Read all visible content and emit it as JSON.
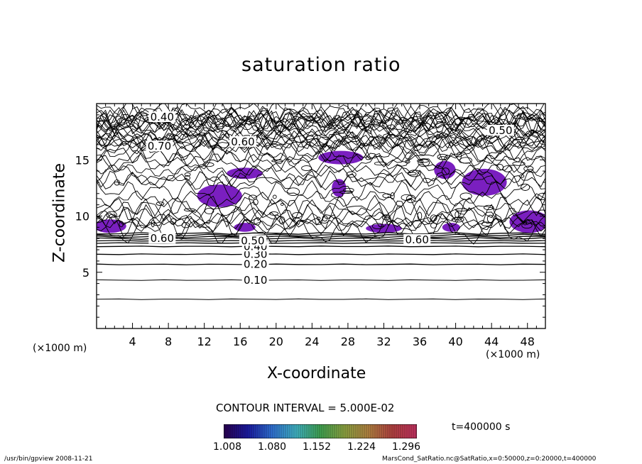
{
  "chart_data": {
    "type": "contour",
    "title": "saturation ratio",
    "xlabel": "X-coordinate",
    "ylabel": "Z-coordinate",
    "x_unit": "(×1000 m)",
    "y_unit": "(×1000 m)",
    "xlim": [
      0,
      50
    ],
    "ylim": [
      0,
      20
    ],
    "x_ticks": [
      4,
      8,
      12,
      16,
      20,
      24,
      28,
      32,
      36,
      40,
      44,
      48
    ],
    "y_ticks": [
      5,
      10,
      15
    ],
    "contour_labels": [
      {
        "text": "0.10",
        "x": 17.7,
        "z": 4.3
      },
      {
        "text": "0.20",
        "x": 17.7,
        "z": 5.7
      },
      {
        "text": "0.30",
        "x": 17.7,
        "z": 6.6
      },
      {
        "text": "0.40",
        "x": 17.7,
        "z": 7.3
      },
      {
        "text": "0.50",
        "x": 17.4,
        "z": 7.8
      },
      {
        "text": "0.60",
        "x": 7.3,
        "z": 8.0
      },
      {
        "text": "0.60",
        "x": 35.7,
        "z": 7.9
      },
      {
        "text": "0.40",
        "x": 7.3,
        "z": 18.8
      },
      {
        "text": "0.70",
        "x": 7.0,
        "z": 16.2
      },
      {
        "text": "0.60",
        "x": 16.3,
        "z": 16.6
      },
      {
        "text": "0.50",
        "x": 45.0,
        "z": 17.6
      }
    ],
    "contour_interval_text": "CONTOUR INTERVAL = 5.000E-02",
    "time_text": "t=400000  s",
    "colorbar": {
      "ticks": [
        "1.008",
        "1.080",
        "1.152",
        "1.224",
        "1.296"
      ],
      "colors": [
        "#2a0050",
        "#1a1aa0",
        "#2f6fd0",
        "#3fb0c0",
        "#3fa050",
        "#8aa040",
        "#b08040",
        "#b04040",
        "#c03060"
      ]
    },
    "supersaturated_color": "#7a1fc0"
  },
  "footer": {
    "left": "/usr/bin/gpview   2008-11-21",
    "right": "MarsCond_SatRatio.nc@SatRatio,x=0:50000,z=0:20000,t=400000"
  }
}
